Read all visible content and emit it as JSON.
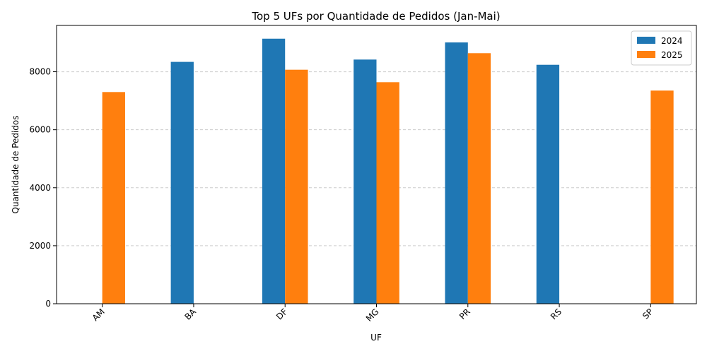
{
  "chart_data": {
    "type": "bar",
    "title": "Top 5 UFs por Quantidade de Pedidos (Jan-Mai)",
    "xlabel": "UF",
    "ylabel": "Quantidade de Pedidos",
    "categories": [
      "AM",
      "BA",
      "DF",
      "MG",
      "PR",
      "RS",
      "SP"
    ],
    "series": [
      {
        "name": "2024",
        "color": "#1f77b4",
        "values": [
          null,
          8340,
          9140,
          8420,
          9010,
          8240,
          null
        ]
      },
      {
        "name": "2025",
        "color": "#ff7f0e",
        "values": [
          7300,
          null,
          8070,
          7640,
          8640,
          null,
          7350
        ]
      }
    ],
    "ylim": [
      0,
      9597
    ],
    "yticks": [
      0,
      2000,
      4000,
      6000,
      8000
    ],
    "grid": "y-dashed",
    "legend_position": "top-right"
  }
}
